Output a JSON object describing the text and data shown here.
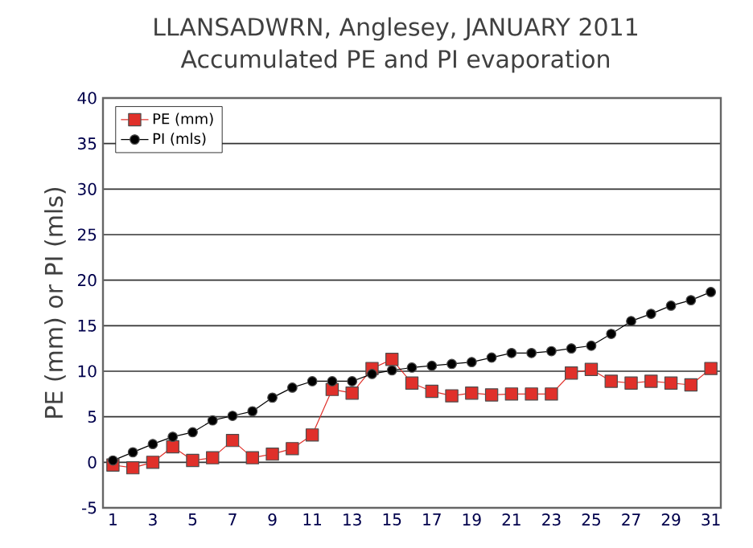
{
  "chart_data": {
    "type": "line",
    "title": "LLANSADWRN, Anglesey, JANUARY 2011",
    "subtitle": "Accumulated PE and PI evaporation",
    "ylabel": "PE (mm) or PI (mls)",
    "x": [
      1,
      2,
      3,
      4,
      5,
      6,
      7,
      8,
      9,
      10,
      11,
      12,
      13,
      14,
      15,
      16,
      17,
      18,
      19,
      20,
      21,
      22,
      23,
      24,
      25,
      26,
      27,
      28,
      29,
      30,
      31
    ],
    "series": [
      {
        "name": "PE (mm)",
        "color": "#e0302a",
        "marker": "square",
        "values": [
          -0.3,
          -0.6,
          0,
          1.7,
          0.2,
          0.5,
          2.4,
          0.5,
          0.9,
          1.5,
          3.0,
          8.0,
          7.6,
          10.3,
          11.3,
          8.7,
          7.8,
          7.3,
          7.6,
          7.4,
          7.5,
          7.5,
          7.5,
          9.8,
          10.2,
          8.9,
          8.7,
          8.9,
          8.7,
          8.5,
          10.3
        ]
      },
      {
        "name": "PI (mls)",
        "color": "#000000",
        "marker": "circle",
        "values": [
          0.2,
          1.1,
          2.0,
          2.8,
          3.3,
          4.6,
          5.1,
          5.6,
          7.1,
          8.2,
          8.9,
          8.9,
          8.9,
          9.7,
          10.1,
          10.4,
          10.6,
          10.8,
          11.0,
          11.5,
          12.0,
          12.0,
          12.2,
          12.5,
          12.8,
          14.1,
          15.5,
          16.3,
          17.2,
          17.8,
          18.7
        ]
      }
    ],
    "xlim": [
      0.5,
      31.5
    ],
    "xticks": [
      1,
      3,
      5,
      7,
      9,
      11,
      13,
      15,
      17,
      19,
      21,
      23,
      25,
      27,
      29,
      31
    ],
    "ylim": [
      -5,
      40
    ],
    "yticks": [
      -5,
      0,
      5,
      10,
      15,
      20,
      25,
      30,
      35,
      40
    ],
    "grid": "y",
    "legend": "top left",
    "line_style": "solid"
  }
}
